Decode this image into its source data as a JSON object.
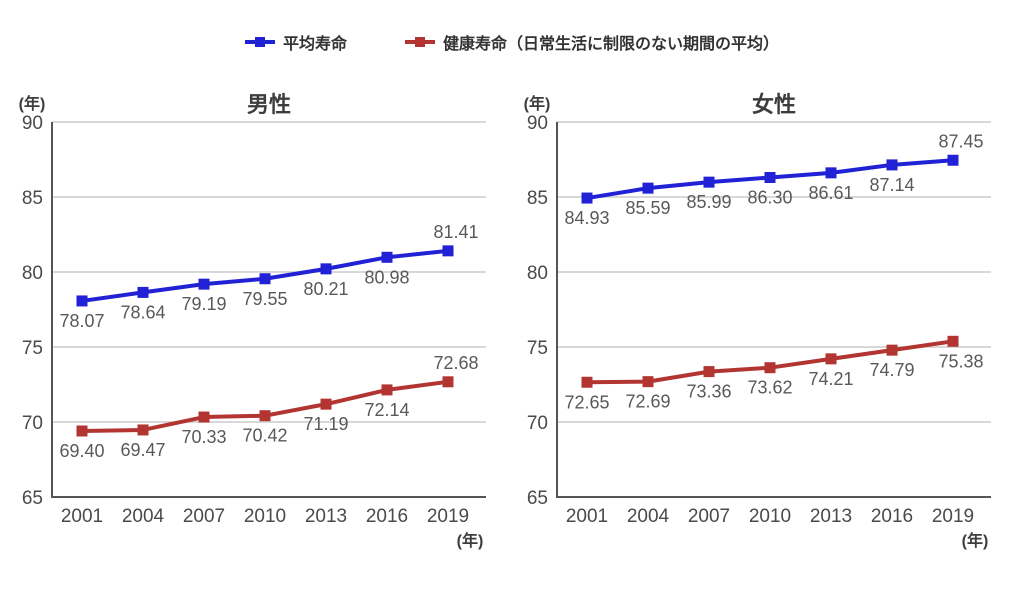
{
  "legend": {
    "items": [
      {
        "label": "平均寿命",
        "color": "#2121d6"
      },
      {
        "label": "健康寿命（日常生活に制限のない期間の平均）",
        "color": "#b23532"
      }
    ]
  },
  "chart_data": [
    {
      "type": "line",
      "title": "男性",
      "unit": "(年)",
      "categories": [
        "2001",
        "2004",
        "2007",
        "2010",
        "2013",
        "2016",
        "2019"
      ],
      "xlabel": "(年)",
      "ylabel": "(年)",
      "ylim": [
        65,
        90
      ],
      "ytick_step": 5,
      "grid": true,
      "legend_position": "top",
      "series": [
        {
          "name": "平均寿命",
          "color": "#2121d6",
          "values": [
            78.07,
            78.64,
            79.19,
            79.55,
            80.21,
            80.98,
            81.41
          ],
          "last_label": "above"
        },
        {
          "name": "健康寿命（日常生活に制限のない期間の平均）",
          "color": "#b23532",
          "values": [
            69.4,
            69.47,
            70.33,
            70.42,
            71.19,
            72.14,
            72.68
          ],
          "last_label": "above"
        }
      ]
    },
    {
      "type": "line",
      "title": "女性",
      "unit": "(年)",
      "categories": [
        "2001",
        "2004",
        "2007",
        "2010",
        "2013",
        "2016",
        "2019"
      ],
      "xlabel": "(年)",
      "ylabel": "(年)",
      "ylim": [
        65,
        90
      ],
      "ytick_step": 5,
      "grid": true,
      "legend_position": "top",
      "series": [
        {
          "name": "平均寿命",
          "color": "#2121d6",
          "values": [
            84.93,
            85.59,
            85.99,
            86.3,
            86.61,
            87.14,
            87.45
          ],
          "last_label": "above"
        },
        {
          "name": "健康寿命（日常生活に制限のない期間の平均）",
          "color": "#b23532",
          "values": [
            72.65,
            72.69,
            73.36,
            73.62,
            74.21,
            74.79,
            75.38
          ],
          "last_label": "below"
        }
      ]
    }
  ],
  "style": {
    "grid_color": "#cccccc",
    "axis_color": "#555555",
    "tick_text_color": "#4a4a4a",
    "value_label_color": "#595959"
  }
}
